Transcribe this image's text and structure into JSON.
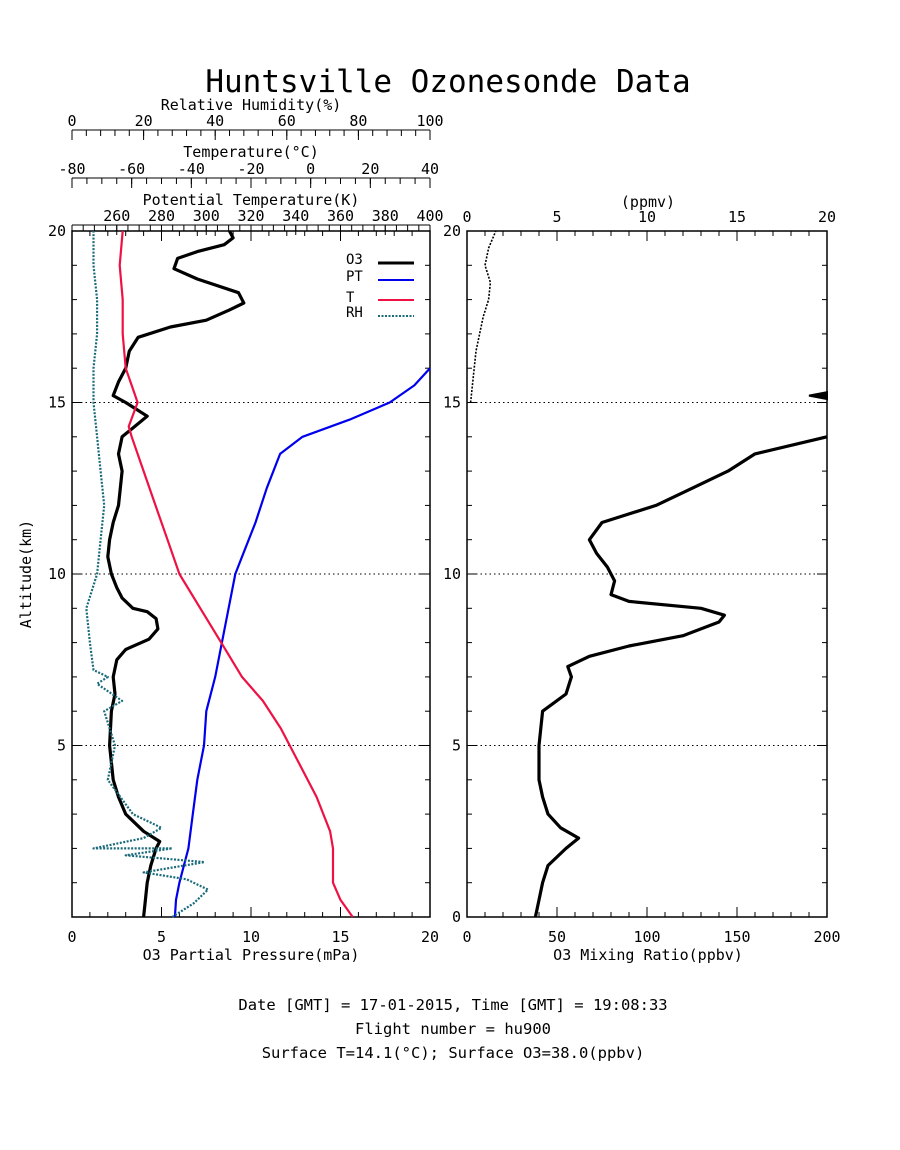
{
  "title": "Huntsville Ozonesonde Data",
  "colors": {
    "o3": "#000000",
    "pt": "#0000ee",
    "t": "#ee1144",
    "rh": "#1a6b7a",
    "axis": "#000000"
  },
  "left_panel": {
    "top_axes": [
      {
        "label": "Relative Humidity(%)",
        "range": [
          0,
          100
        ],
        "ticks": [
          "0",
          "20",
          "40",
          "60",
          "80",
          "100"
        ]
      },
      {
        "label": "Temperature(°C)",
        "range": [
          -80,
          40
        ],
        "ticks": [
          "-80",
          "-60",
          "-40",
          "-20",
          "0",
          "20",
          "40"
        ]
      },
      {
        "label": "Potential Temperature(K)",
        "range": [
          240,
          400
        ],
        "ticks": [
          "260",
          "280",
          "300",
          "320",
          "340",
          "360",
          "380",
          "400"
        ]
      }
    ],
    "xlabel": "O3 Partial Pressure(mPa)",
    "xticks": [
      "0",
      "5",
      "10",
      "15",
      "20"
    ],
    "xlim": [
      0,
      20
    ],
    "ylabel": "Altitude(km)",
    "yticks": [
      "5",
      "10",
      "15",
      "20"
    ],
    "ylim": [
      0,
      20
    ],
    "legend": [
      "O3",
      "PT",
      "T",
      "RH"
    ]
  },
  "right_panel": {
    "top_label": "(ppmv)",
    "top_ticks": [
      "0",
      "5",
      "10",
      "15",
      "20"
    ],
    "xlabel": "O3 Mixing Ratio(ppbv)",
    "xticks": [
      "0",
      "50",
      "100",
      "150",
      "200"
    ],
    "xlim": [
      0,
      200
    ],
    "yticks": [
      "0",
      "5",
      "10",
      "15",
      "20"
    ]
  },
  "footer": {
    "line1": "Date [GMT] = 17-01-2015,  Time [GMT] = 19:08:33",
    "line2": "Flight number = hu900",
    "line3": "Surface T=14.1(°C); Surface O3=38.0(ppbv)"
  },
  "chart_data": [
    {
      "type": "line",
      "panel": "left",
      "xlabel": "O3 Partial Pressure(mPa)",
      "ylabel": "Altitude(km)",
      "ylim": [
        0,
        20
      ],
      "grid": "dotted horizontal at 5, 10, 15 km",
      "legend_position": "top-right",
      "series": [
        {
          "name": "O3",
          "axis": "O3 Partial Pressure(mPa)",
          "points": [
            [
              4.0,
              0
            ],
            [
              4.1,
              0.5
            ],
            [
              4.2,
              1.0
            ],
            [
              4.4,
              1.5
            ],
            [
              4.7,
              2.0
            ],
            [
              4.9,
              2.2
            ],
            [
              4.0,
              2.5
            ],
            [
              3.0,
              3.0
            ],
            [
              2.6,
              3.5
            ],
            [
              2.3,
              4.0
            ],
            [
              2.1,
              5.0
            ],
            [
              2.2,
              6.0
            ],
            [
              2.4,
              6.5
            ],
            [
              2.3,
              7.0
            ],
            [
              2.5,
              7.5
            ],
            [
              3.0,
              7.8
            ],
            [
              4.3,
              8.1
            ],
            [
              4.8,
              8.4
            ],
            [
              4.7,
              8.7
            ],
            [
              4.2,
              8.9
            ],
            [
              3.4,
              9.0
            ],
            [
              2.8,
              9.3
            ],
            [
              2.5,
              9.6
            ],
            [
              2.2,
              10.0
            ],
            [
              2.0,
              10.5
            ],
            [
              2.1,
              11.0
            ],
            [
              2.3,
              11.5
            ],
            [
              2.6,
              12.0
            ],
            [
              2.7,
              12.5
            ],
            [
              2.8,
              13.0
            ],
            [
              2.6,
              13.5
            ],
            [
              2.8,
              14.0
            ],
            [
              3.5,
              14.3
            ],
            [
              4.2,
              14.6
            ],
            [
              3.0,
              15.0
            ],
            [
              2.3,
              15.2
            ],
            [
              2.6,
              15.6
            ],
            [
              3.0,
              16.0
            ],
            [
              3.2,
              16.5
            ],
            [
              3.7,
              16.9
            ],
            [
              5.5,
              17.2
            ],
            [
              7.5,
              17.4
            ],
            [
              8.8,
              17.7
            ],
            [
              9.6,
              17.9
            ],
            [
              9.3,
              18.2
            ],
            [
              7.0,
              18.6
            ],
            [
              5.7,
              18.9
            ],
            [
              5.9,
              19.2
            ],
            [
              7.0,
              19.4
            ],
            [
              8.5,
              19.6
            ],
            [
              9.0,
              19.8
            ],
            [
              8.8,
              20.0
            ]
          ]
        },
        {
          "name": "PT",
          "axis": "Potential Temperature(K)",
          "points": [
            [
              286,
              0
            ],
            [
              286.5,
              0.5
            ],
            [
              288,
              1.0
            ],
            [
              290,
              1.5
            ],
            [
              292,
              2.0
            ],
            [
              294,
              3.0
            ],
            [
              296,
              4.0
            ],
            [
              299,
              5.0
            ],
            [
              300,
              6.0
            ],
            [
              304,
              7.0
            ],
            [
              307,
              8.0
            ],
            [
              310,
              9.0
            ],
            [
              313,
              10.0
            ],
            [
              316,
              10.5
            ],
            [
              322,
              11.5
            ],
            [
              327,
              12.5
            ],
            [
              333,
              13.5
            ],
            [
              343,
              14.0
            ],
            [
              364,
              14.5
            ],
            [
              382,
              15.0
            ],
            [
              393,
              15.5
            ],
            [
              400,
              16.0
            ]
          ]
        },
        {
          "name": "T",
          "axis": "Temperature(°C)",
          "points": [
            [
              14.1,
              0
            ],
            [
              10,
              0.5
            ],
            [
              7.5,
              1.0
            ],
            [
              7.5,
              2.0
            ],
            [
              6.5,
              2.5
            ],
            [
              2,
              3.5
            ],
            [
              -4,
              4.5
            ],
            [
              -10,
              5.5
            ],
            [
              -16,
              6.3
            ],
            [
              -23,
              7.0
            ],
            [
              -30,
              8.0
            ],
            [
              -37,
              9.0
            ],
            [
              -44,
              10.0
            ],
            [
              -48,
              11.0
            ],
            [
              -52,
              12.0
            ],
            [
              -56,
              13.0
            ],
            [
              -60,
              14.0
            ],
            [
              -61,
              14.3
            ],
            [
              -58,
              15.0
            ],
            [
              -60,
              15.5
            ],
            [
              -62,
              16.0
            ],
            [
              -63,
              17.0
            ],
            [
              -63,
              18.0
            ],
            [
              -64,
              19.0
            ],
            [
              -63,
              20.0
            ]
          ]
        },
        {
          "name": "RH",
          "axis": "Relative Humidity(%)",
          "points": [
            [
              28,
              0
            ],
            [
              34,
              0.4
            ],
            [
              38,
              0.8
            ],
            [
              32,
              1.1
            ],
            [
              20,
              1.3
            ],
            [
              37,
              1.6
            ],
            [
              15,
              1.8
            ],
            [
              28,
              2.0
            ],
            [
              6,
              2.0
            ],
            [
              20,
              2.3
            ],
            [
              25,
              2.6
            ],
            [
              17,
              3.0
            ],
            [
              10,
              4.0
            ],
            [
              12,
              5.0
            ],
            [
              9,
              6.0
            ],
            [
              14,
              6.3
            ],
            [
              7,
              6.8
            ],
            [
              10,
              7.0
            ],
            [
              6,
              7.2
            ],
            [
              5,
              8.0
            ],
            [
              4,
              9.0
            ],
            [
              7,
              10.0
            ],
            [
              8,
              11.0
            ],
            [
              9,
              12.0
            ],
            [
              8,
              13.0
            ],
            [
              7,
              14.0
            ],
            [
              6,
              15.0
            ],
            [
              6,
              16.0
            ],
            [
              7,
              17.0
            ],
            [
              7,
              18.0
            ],
            [
              6,
              19.0
            ],
            [
              6,
              20.0
            ]
          ]
        }
      ]
    },
    {
      "type": "line",
      "panel": "right",
      "xlabel": "O3 Mixing Ratio(ppbv)",
      "ylim": [
        0,
        20
      ],
      "grid": "dotted horizontal at 5, 10, 15 km",
      "series": [
        {
          "name": "O3 mixing ratio",
          "points": [
            [
              38,
              0
            ],
            [
              40,
              0.5
            ],
            [
              42,
              1.0
            ],
            [
              45,
              1.5
            ],
            [
              55,
              2.0
            ],
            [
              62,
              2.3
            ],
            [
              52,
              2.6
            ],
            [
              45,
              3.0
            ],
            [
              42,
              3.5
            ],
            [
              40,
              4.0
            ],
            [
              40,
              5.0
            ],
            [
              42,
              6.0
            ],
            [
              55,
              6.5
            ],
            [
              58,
              7.0
            ],
            [
              56,
              7.3
            ],
            [
              68,
              7.6
            ],
            [
              90,
              7.9
            ],
            [
              120,
              8.2
            ],
            [
              140,
              8.6
            ],
            [
              143,
              8.8
            ],
            [
              130,
              9.0
            ],
            [
              90,
              9.2
            ],
            [
              80,
              9.4
            ],
            [
              82,
              9.8
            ],
            [
              78,
              10.2
            ],
            [
              72,
              10.6
            ],
            [
              68,
              11.0
            ],
            [
              75,
              11.5
            ],
            [
              105,
              12.0
            ],
            [
              125,
              12.5
            ],
            [
              145,
              13.0
            ],
            [
              160,
              13.5
            ],
            [
              200,
              14.0
            ]
          ]
        },
        {
          "name": "O3 mixing ratio (ppmv)",
          "unit": "ppmv",
          "points": [
            [
              0.2,
              15.0
            ],
            [
              0.3,
              15.5
            ],
            [
              0.4,
              16.0
            ],
            [
              0.5,
              16.5
            ],
            [
              0.7,
              17.0
            ],
            [
              0.9,
              17.5
            ],
            [
              1.2,
              18.0
            ],
            [
              1.3,
              18.5
            ],
            [
              1.0,
              19.0
            ],
            [
              1.2,
              19.5
            ],
            [
              1.6,
              20.0
            ]
          ]
        }
      ]
    }
  ]
}
